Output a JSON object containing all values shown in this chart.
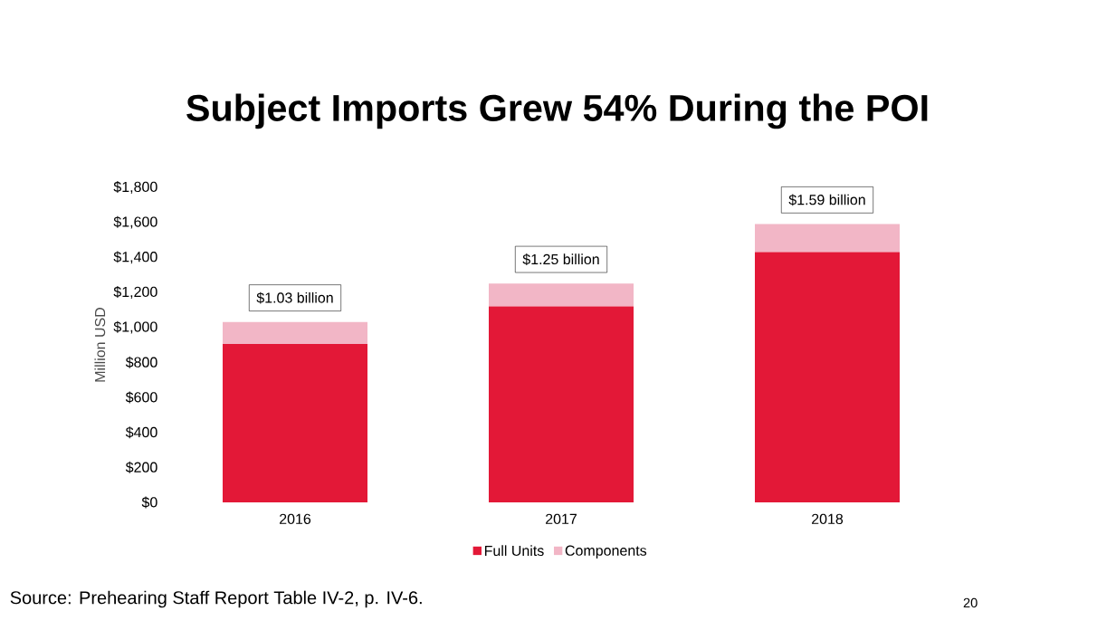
{
  "chart_data": {
    "type": "bar",
    "title": "Subject Imports Grew 54% During the POI",
    "ylabel": "Million USD",
    "stacked": true,
    "legend": "bottom",
    "categories": [
      "2016",
      "2017",
      "2018"
    ],
    "series": [
      {
        "name": "Full Units",
        "color": "#e31837",
        "values": [
          905,
          1120,
          1430
        ]
      },
      {
        "name": "Components",
        "color": "#f2b6c6",
        "values": [
          125,
          130,
          160
        ]
      }
    ],
    "ylim": [
      0,
      1800
    ],
    "yticks": [
      {
        "value": 0,
        "label": "$0"
      },
      {
        "value": 200,
        "label": "$200"
      },
      {
        "value": 400,
        "label": "$400"
      },
      {
        "value": 600,
        "label": "$600"
      },
      {
        "value": 800,
        "label": "$800"
      },
      {
        "value": 1000,
        "label": "$1,000"
      },
      {
        "value": 1200,
        "label": "$1,200"
      },
      {
        "value": 1400,
        "label": "$1,400"
      },
      {
        "value": 1600,
        "label": "$1,600"
      },
      {
        "value": 1800,
        "label": "$1,800"
      }
    ],
    "annotations": [
      {
        "text": "$1.03 billion",
        "x": "2016",
        "y": 1030
      },
      {
        "text": "$1.25 billion",
        "x": "2017",
        "y": 1250
      },
      {
        "text": "$1.59 billion",
        "x": "2018",
        "y": 1590
      },
      "Source: Prehearing Staff Report Table IV-2, p. IV-6.",
      "20"
    ]
  }
}
